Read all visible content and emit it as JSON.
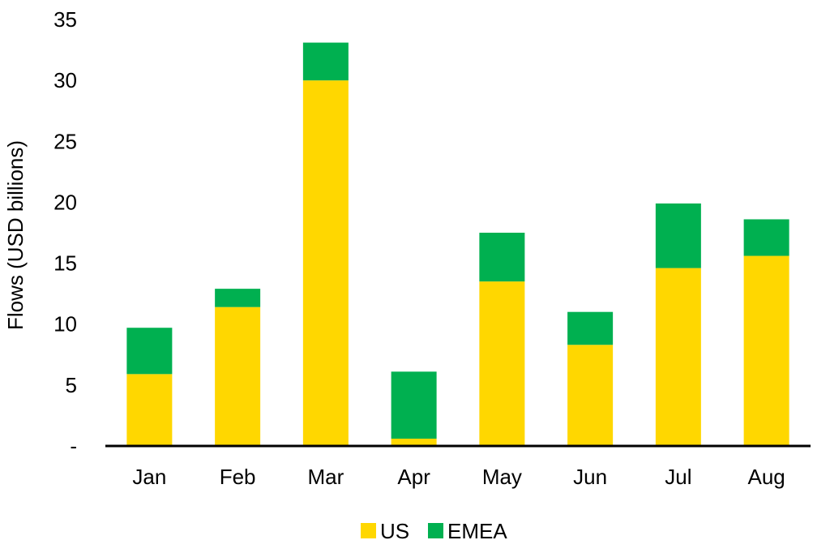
{
  "chart_data": {
    "type": "bar",
    "stacked": true,
    "categories": [
      "Jan",
      "Feb",
      "Mar",
      "Apr",
      "May",
      "Jun",
      "Jul",
      "Aug"
    ],
    "series": [
      {
        "name": "US",
        "color": "#FFD700",
        "values": [
          5.9,
          11.4,
          30.0,
          0.6,
          13.5,
          8.3,
          14.6,
          15.6
        ]
      },
      {
        "name": "EMEA",
        "color": "#00B050",
        "values": [
          3.8,
          1.5,
          3.1,
          5.5,
          4.0,
          2.7,
          5.3,
          3.0
        ]
      }
    ],
    "ylabel": "Flows (USD billions)",
    "yticks": [
      "-",
      "5",
      "10",
      "15",
      "20",
      "25",
      "30",
      "35"
    ],
    "ylim": [
      0,
      35
    ],
    "grid": false,
    "legend": "bottom"
  }
}
